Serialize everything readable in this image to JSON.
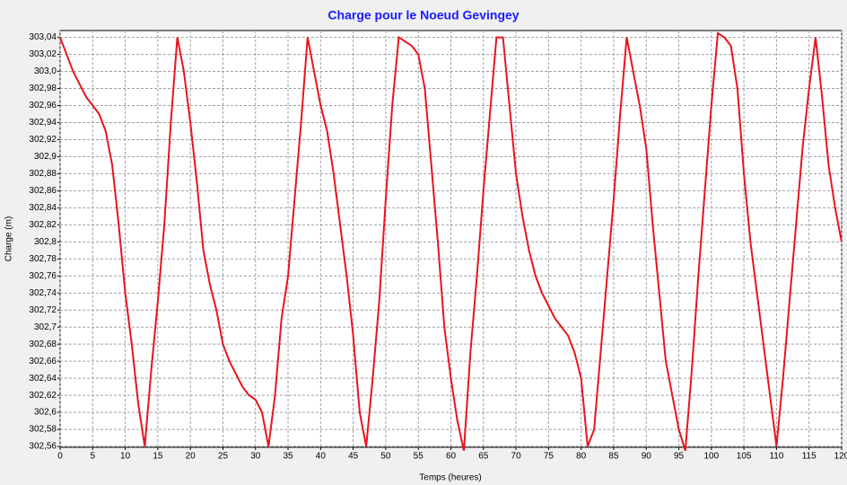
{
  "chart_data": {
    "type": "line",
    "title": "Charge pour le Noeud Gevingey",
    "xlabel": "Temps (heures)",
    "ylabel": "Charge (m)",
    "x": [
      0,
      1,
      2,
      3,
      4,
      5,
      6,
      7,
      8,
      9,
      10,
      11,
      12,
      13,
      14,
      15,
      16,
      17,
      18,
      19,
      20,
      21,
      22,
      23,
      24,
      25,
      26,
      27,
      28,
      29,
      30,
      31,
      32,
      33,
      34,
      35,
      36,
      37,
      38,
      39,
      40,
      41,
      42,
      43,
      44,
      45,
      46,
      47,
      48,
      49,
      50,
      51,
      52,
      53,
      54,
      55,
      56,
      57,
      58,
      59,
      60,
      61,
      62,
      63,
      64,
      65,
      66,
      67,
      68,
      69,
      70,
      71,
      72,
      73,
      74,
      75,
      76,
      77,
      78,
      79,
      80,
      81,
      82,
      83,
      84,
      85,
      86,
      87,
      88,
      89,
      90,
      91,
      92,
      93,
      94,
      95,
      96,
      97,
      98,
      99,
      100,
      101,
      102,
      103,
      104,
      105,
      106,
      107,
      108,
      109,
      110,
      111,
      112,
      113,
      114,
      115,
      116,
      117,
      118,
      119,
      120
    ],
    "series": [
      {
        "name": "Charge",
        "color": "#e8141e",
        "values": [
          303.04,
          303.02,
          303.0,
          302.985,
          302.97,
          302.96,
          302.95,
          302.93,
          302.89,
          302.82,
          302.74,
          302.68,
          302.61,
          302.56,
          302.65,
          302.73,
          302.82,
          302.94,
          303.04,
          303.0,
          302.94,
          302.87,
          302.79,
          302.75,
          302.72,
          302.68,
          302.66,
          302.645,
          302.63,
          302.62,
          302.615,
          302.6,
          302.56,
          302.62,
          302.71,
          302.76,
          302.85,
          302.94,
          303.04,
          303.0,
          302.96,
          302.93,
          302.88,
          302.82,
          302.76,
          302.69,
          302.6,
          302.56,
          302.64,
          302.73,
          302.85,
          302.96,
          303.04,
          303.035,
          303.03,
          303.02,
          302.98,
          302.89,
          302.8,
          302.7,
          302.64,
          302.59,
          302.555,
          302.67,
          302.76,
          302.86,
          302.95,
          303.04,
          303.04,
          302.96,
          302.88,
          302.83,
          302.79,
          302.76,
          302.74,
          302.725,
          302.71,
          302.7,
          302.69,
          302.67,
          302.64,
          302.56,
          302.58,
          302.67,
          302.76,
          302.85,
          302.95,
          303.04,
          303.0,
          302.96,
          302.91,
          302.82,
          302.74,
          302.66,
          302.62,
          302.58,
          302.555,
          302.65,
          302.76,
          302.86,
          302.96,
          303.045,
          303.04,
          303.03,
          302.98,
          302.88,
          302.8,
          302.74,
          302.68,
          302.62,
          302.56,
          302.64,
          302.73,
          302.82,
          302.91,
          302.98,
          303.04,
          302.97,
          302.89,
          302.84,
          302.8
        ]
      }
    ],
    "xlim": [
      0,
      120
    ],
    "ylim": [
      302.559,
      303.048
    ],
    "xticks": [
      0,
      5,
      10,
      15,
      20,
      25,
      30,
      35,
      40,
      45,
      50,
      55,
      60,
      65,
      70,
      75,
      80,
      85,
      90,
      95,
      100,
      105,
      110,
      115,
      120
    ],
    "yticks": [
      {
        "value": 302.56,
        "label": "302,56"
      },
      {
        "value": 302.58,
        "label": "302,58"
      },
      {
        "value": 302.6,
        "label": "302,6"
      },
      {
        "value": 302.62,
        "label": "302,62"
      },
      {
        "value": 302.64,
        "label": "302,64"
      },
      {
        "value": 302.66,
        "label": "302,66"
      },
      {
        "value": 302.68,
        "label": "302,68"
      },
      {
        "value": 302.7,
        "label": "302,7"
      },
      {
        "value": 302.72,
        "label": "302,72"
      },
      {
        "value": 302.74,
        "label": "302,74"
      },
      {
        "value": 302.76,
        "label": "302,76"
      },
      {
        "value": 302.78,
        "label": "302,78"
      },
      {
        "value": 302.8,
        "label": "302,8"
      },
      {
        "value": 302.82,
        "label": "302,82"
      },
      {
        "value": 302.84,
        "label": "302,84"
      },
      {
        "value": 302.86,
        "label": "302,86"
      },
      {
        "value": 302.88,
        "label": "302,88"
      },
      {
        "value": 302.9,
        "label": "302,9"
      },
      {
        "value": 302.92,
        "label": "302,92"
      },
      {
        "value": 302.94,
        "label": "302,94"
      },
      {
        "value": 302.96,
        "label": "302,96"
      },
      {
        "value": 302.98,
        "label": "302,98"
      },
      {
        "value": 303.0,
        "label": "303,0"
      },
      {
        "value": 303.02,
        "label": "303,02"
      },
      {
        "value": 303.04,
        "label": "303,04"
      }
    ],
    "grid": true
  }
}
